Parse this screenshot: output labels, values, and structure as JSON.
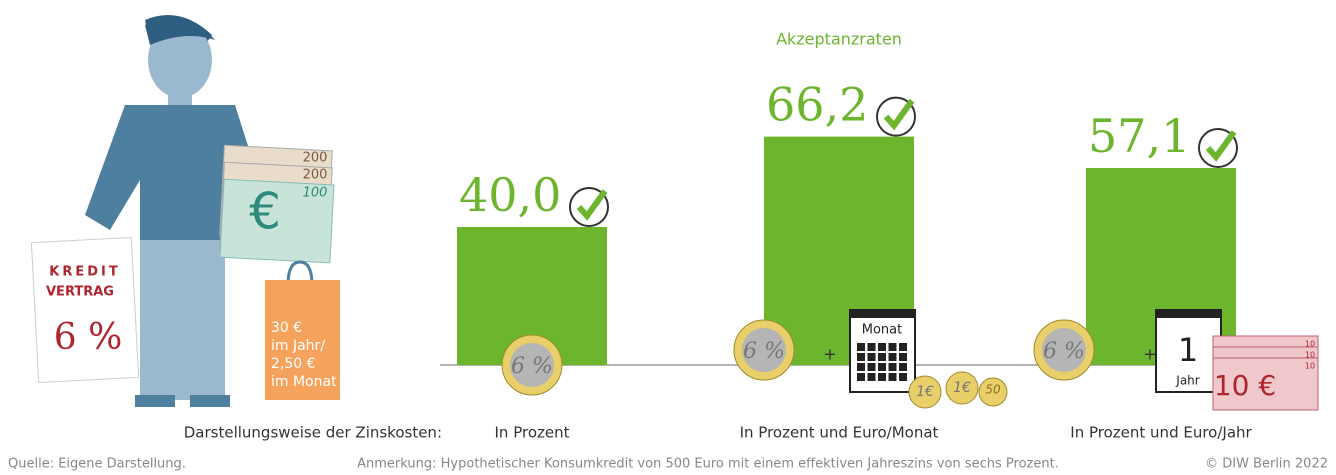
{
  "chart_data": {
    "type": "bar",
    "title": "Akzeptanzraten",
    "categories": [
      "In Prozent",
      "In Prozent und Euro/Monat",
      "In Prozent und Euro/Jahr"
    ],
    "values": [
      40.0,
      66.2,
      57.1
    ],
    "value_labels": [
      "40,0",
      "66,2",
      "57,1"
    ],
    "color": "#6cb52d",
    "ylim": [
      0,
      100
    ],
    "x_label": "Darstellungsweise der Zinskosten:",
    "source": "Quelle: Eigene Darstellung.",
    "note": "Anmerkung: Hypothetischer Konsumkredit von 500 Euro mit einem effektiven Jahreszins von sechs Prozent.",
    "copyright": "© DIW Berlin 2022"
  },
  "illustration": {
    "contract_line1": "KREDIT",
    "contract_line2": "VERTRAG",
    "contract_rate": "6 %",
    "bag_lines": [
      "30 €",
      "im Jahr/",
      "2,50 €",
      "im Monat"
    ],
    "notes": [
      "200",
      "200",
      "100",
      "€"
    ],
    "coin": "6 %",
    "plus": "+",
    "month": "Monat",
    "year_number": "1",
    "year": "Jahr",
    "cent": "50",
    "euro_coin": "1€",
    "banknote": "10 €",
    "banknote_small": "10"
  }
}
